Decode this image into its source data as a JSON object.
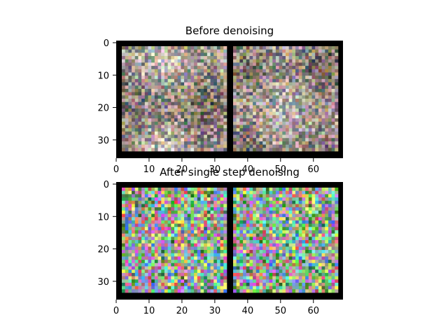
{
  "panels": [
    {
      "title": "Before denoising",
      "x_ticks": [
        "0",
        "10",
        "20",
        "30",
        "40",
        "50",
        "60"
      ],
      "y_ticks": [
        "0",
        "10",
        "20",
        "30"
      ],
      "style": "smooth",
      "colors": [
        "#b7a27a",
        "#8b7a6a",
        "#6e6c73",
        "#a99a90",
        "#c7b8aa",
        "#5c6a68",
        "#9b8fa0",
        "#d6c9c0"
      ]
    },
    {
      "title": "After single step denoising",
      "x_ticks": [
        "0",
        "10",
        "20",
        "30",
        "40",
        "50",
        "60"
      ],
      "y_ticks": [
        "0",
        "10",
        "20",
        "30"
      ],
      "style": "noisy",
      "colors": [
        "#7ad36a",
        "#c46fd4",
        "#5d8bd8",
        "#e6e36a",
        "#6cd6c8",
        "#d66a6a",
        "#a3a3a3",
        "#3e8b3e"
      ]
    }
  ]
}
